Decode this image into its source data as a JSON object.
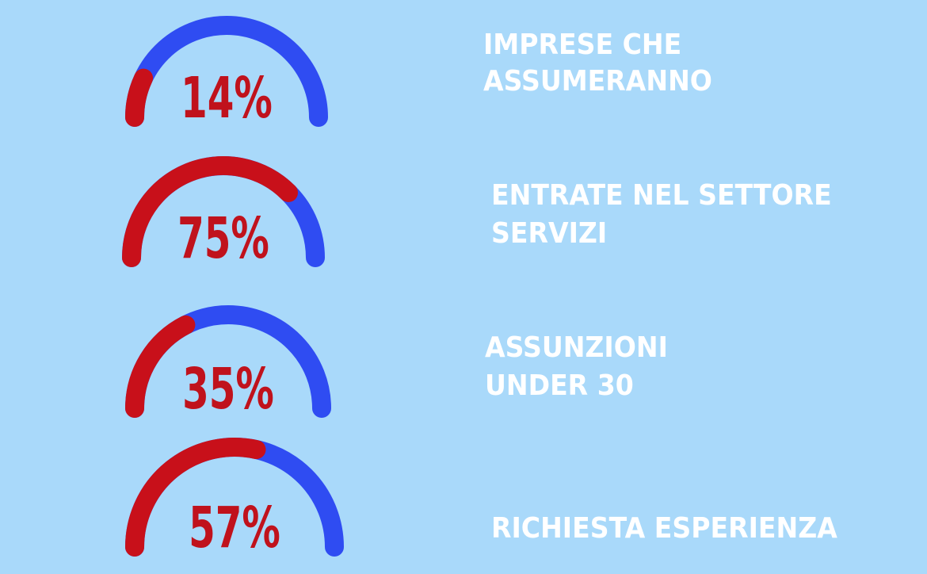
{
  "chart_data": [
    {
      "type": "gauge",
      "title": [
        "IMPRESE CHE",
        "ASSUMERANNO"
      ],
      "values": [
        14
      ],
      "value_labels": [
        "14%"
      ],
      "ylim": [
        0,
        100
      ],
      "color": "#c8101a",
      "track_color": "#2f4cf2"
    },
    {
      "type": "gauge",
      "title": [
        "ENTRATE NEL SETTORE",
        "SERVIZI"
      ],
      "values": [
        75
      ],
      "value_labels": [
        "75%"
      ],
      "ylim": [
        0,
        100
      ],
      "color": "#c8101a",
      "track_color": "#2f4cf2"
    },
    {
      "type": "gauge",
      "title": [
        "ASSUNZIONI",
        "UNDER 30"
      ],
      "values": [
        35
      ],
      "value_labels": [
        "35%"
      ],
      "ylim": [
        0,
        100
      ],
      "color": "#c8101a",
      "track_color": "#2f4cf2"
    },
    {
      "type": "gauge",
      "title": [
        "RICHIESTA ESPERIENZA"
      ],
      "values": [
        57
      ],
      "value_labels": [
        "57%"
      ],
      "ylim": [
        0,
        100
      ],
      "color": "#c8101a",
      "track_color": "#2f4cf2"
    }
  ]
}
